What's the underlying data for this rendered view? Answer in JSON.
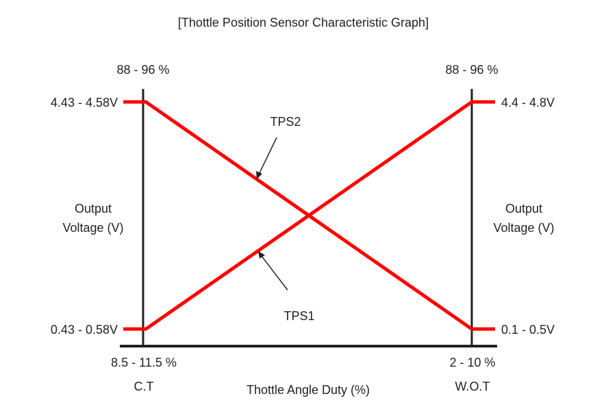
{
  "title": "[Thottle Position Sensor Characteristic Graph]",
  "left_axis": {
    "top_percent": "88 - 96 %",
    "high_voltage": "4.43 - 4.58V",
    "low_voltage": "0.43 - 0.58V",
    "label_line1": "Output",
    "label_line2": "Voltage (V)",
    "bottom_percent": "8.5 - 11.5 %",
    "position": "C.T"
  },
  "right_axis": {
    "top_percent": "88 - 96 %",
    "high_voltage": "4.4 - 4.8V",
    "low_voltage": "0.1 - 0.5V",
    "label_line1": "Output",
    "label_line2": "Voltage (V)",
    "bottom_percent": "2 - 10 %",
    "position": "W.O.T"
  },
  "x_axis_label": "Thottle Angle Duty (%)",
  "series": [
    {
      "name": "TPS1",
      "from": "low",
      "to": "high"
    },
    {
      "name": "TPS2",
      "from": "high",
      "to": "low"
    }
  ],
  "colors": {
    "line": "#ff0000",
    "axis": "#231f20",
    "text": "#222222"
  }
}
